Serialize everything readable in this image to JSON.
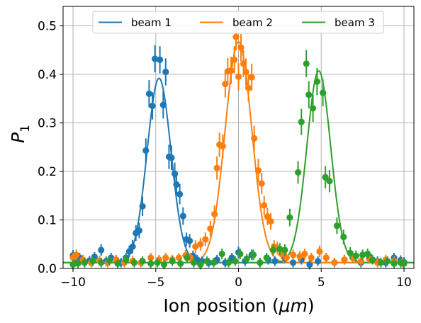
{
  "chart_data": {
    "type": "scatter",
    "title": "",
    "xlabel": "Ion position (μm)",
    "xlabel_prefix": "Ion position (",
    "xlabel_unit": "μm",
    "xlabel_suffix": ")",
    "ylabel": "P₁",
    "ylabel_main": "P",
    "ylabel_sub": "1",
    "xlim": [
      -10.6,
      10.6
    ],
    "ylim": [
      0,
      0.54
    ],
    "xticks": [
      -10,
      -5,
      0,
      5,
      10
    ],
    "xtick_labels": [
      "−10",
      "−5",
      "0",
      "5",
      "10"
    ],
    "yticks": [
      0.0,
      0.1,
      0.2,
      0.3,
      0.4,
      0.5
    ],
    "ytick_labels": [
      "0.0",
      "0.1",
      "0.2",
      "0.3",
      "0.4",
      "0.5"
    ],
    "grid": true,
    "legend_position": "top",
    "series": [
      {
        "name": "beam 1",
        "color": "#1f77b4",
        "fit": {
          "amplitude": 0.38,
          "center": -4.8,
          "sigma": 0.72,
          "offset": 0.012
        },
        "points": [
          {
            "x": -10.0,
            "y": 0.027,
            "err": 0.011
          },
          {
            "x": -9.8,
            "y": 0.018,
            "err": 0.01
          },
          {
            "x": -9.6,
            "y": 0.022,
            "err": 0.01
          },
          {
            "x": -9.3,
            "y": 0.012,
            "err": 0.01
          },
          {
            "x": -9.0,
            "y": 0.016,
            "err": 0.01
          },
          {
            "x": -8.7,
            "y": 0.024,
            "err": 0.01
          },
          {
            "x": -8.3,
            "y": 0.038,
            "err": 0.012
          },
          {
            "x": -8.0,
            "y": 0.015,
            "err": 0.01
          },
          {
            "x": -7.7,
            "y": 0.022,
            "err": 0.01
          },
          {
            "x": -7.4,
            "y": 0.018,
            "err": 0.01
          },
          {
            "x": -7.1,
            "y": 0.012,
            "err": 0.01
          },
          {
            "x": -6.8,
            "y": 0.022,
            "err": 0.01
          },
          {
            "x": -6.6,
            "y": 0.035,
            "err": 0.012
          },
          {
            "x": -6.4,
            "y": 0.045,
            "err": 0.014
          },
          {
            "x": -6.2,
            "y": 0.073,
            "err": 0.016
          },
          {
            "x": -6.0,
            "y": 0.078,
            "err": 0.016
          },
          {
            "x": -5.8,
            "y": 0.128,
            "err": 0.02
          },
          {
            "x": -5.6,
            "y": 0.243,
            "err": 0.025
          },
          {
            "x": -5.4,
            "y": 0.36,
            "err": 0.028
          },
          {
            "x": -5.2,
            "y": 0.335,
            "err": 0.028
          },
          {
            "x": -5.05,
            "y": 0.432,
            "err": 0.028
          },
          {
            "x": -4.75,
            "y": 0.43,
            "err": 0.028
          },
          {
            "x": -4.55,
            "y": 0.337,
            "err": 0.028
          },
          {
            "x": -4.4,
            "y": 0.405,
            "err": 0.028
          },
          {
            "x": -4.2,
            "y": 0.23,
            "err": 0.025
          },
          {
            "x": -4.05,
            "y": 0.228,
            "err": 0.025
          },
          {
            "x": -3.85,
            "y": 0.195,
            "err": 0.023
          },
          {
            "x": -3.75,
            "y": 0.173,
            "err": 0.022
          },
          {
            "x": -3.55,
            "y": 0.153,
            "err": 0.021
          },
          {
            "x": -3.35,
            "y": 0.108,
            "err": 0.018
          },
          {
            "x": -3.15,
            "y": 0.06,
            "err": 0.014
          },
          {
            "x": -2.95,
            "y": 0.057,
            "err": 0.014
          },
          {
            "x": -2.75,
            "y": 0.026,
            "err": 0.011
          },
          {
            "x": -2.5,
            "y": 0.018,
            "err": 0.01
          },
          {
            "x": -2.2,
            "y": 0.015,
            "err": 0.01
          },
          {
            "x": -1.8,
            "y": 0.012,
            "err": 0.01
          },
          {
            "x": -1.3,
            "y": 0.018,
            "err": 0.01
          },
          {
            "x": -0.8,
            "y": 0.012,
            "err": 0.01
          },
          {
            "x": -0.4,
            "y": 0.022,
            "err": 0.01
          },
          {
            "x": 0.0,
            "y": 0.033,
            "err": 0.012
          },
          {
            "x": 0.4,
            "y": 0.015,
            "err": 0.01
          },
          {
            "x": 0.8,
            "y": 0.028,
            "err": 0.011
          },
          {
            "x": 1.3,
            "y": 0.012,
            "err": 0.01
          },
          {
            "x": 1.8,
            "y": 0.018,
            "err": 0.01
          },
          {
            "x": 2.2,
            "y": 0.015,
            "err": 0.01
          },
          {
            "x": 2.8,
            "y": 0.022,
            "err": 0.01
          },
          {
            "x": 3.3,
            "y": 0.012,
            "err": 0.01
          },
          {
            "x": 3.8,
            "y": 0.018,
            "err": 0.01
          },
          {
            "x": 4.3,
            "y": 0.008,
            "err": 0.01
          },
          {
            "x": 4.8,
            "y": 0.015,
            "err": 0.01
          },
          {
            "x": 5.3,
            "y": 0.022,
            "err": 0.01
          },
          {
            "x": 5.8,
            "y": 0.012,
            "err": 0.01
          },
          {
            "x": 6.4,
            "y": 0.018,
            "err": 0.01
          },
          {
            "x": 6.9,
            "y": 0.022,
            "err": 0.01
          },
          {
            "x": 7.4,
            "y": 0.012,
            "err": 0.01
          },
          {
            "x": 7.9,
            "y": 0.025,
            "err": 0.011
          },
          {
            "x": 8.4,
            "y": 0.015,
            "err": 0.01
          },
          {
            "x": 8.9,
            "y": 0.012,
            "err": 0.01
          },
          {
            "x": 9.4,
            "y": 0.022,
            "err": 0.01
          },
          {
            "x": 9.8,
            "y": 0.017,
            "err": 0.01
          },
          {
            "x": 10.0,
            "y": 0.013,
            "err": 0.01
          }
        ]
      },
      {
        "name": "beam 2",
        "color": "#ff7f0e",
        "fit": {
          "amplitude": 0.455,
          "center": 0.0,
          "sigma": 0.8,
          "offset": 0.012
        },
        "points": [
          {
            "x": -10.0,
            "y": 0.022,
            "err": 0.01
          },
          {
            "x": -9.8,
            "y": 0.028,
            "err": 0.011
          },
          {
            "x": -9.4,
            "y": 0.018,
            "err": 0.01
          },
          {
            "x": -8.9,
            "y": 0.012,
            "err": 0.01
          },
          {
            "x": -8.4,
            "y": 0.016,
            "err": 0.01
          },
          {
            "x": -7.9,
            "y": 0.012,
            "err": 0.01
          },
          {
            "x": -7.4,
            "y": 0.018,
            "err": 0.01
          },
          {
            "x": -6.9,
            "y": 0.012,
            "err": 0.01
          },
          {
            "x": -6.4,
            "y": 0.015,
            "err": 0.01
          },
          {
            "x": -5.9,
            "y": 0.012,
            "err": 0.01
          },
          {
            "x": -5.3,
            "y": 0.022,
            "err": 0.01
          },
          {
            "x": -4.8,
            "y": 0.018,
            "err": 0.01
          },
          {
            "x": -4.4,
            "y": 0.022,
            "err": 0.01
          },
          {
            "x": -4.0,
            "y": 0.018,
            "err": 0.01
          },
          {
            "x": -3.6,
            "y": 0.022,
            "err": 0.01
          },
          {
            "x": -3.2,
            "y": 0.027,
            "err": 0.011
          },
          {
            "x": -2.9,
            "y": 0.022,
            "err": 0.01
          },
          {
            "x": -2.6,
            "y": 0.045,
            "err": 0.013
          },
          {
            "x": -2.3,
            "y": 0.05,
            "err": 0.013
          },
          {
            "x": -2.0,
            "y": 0.06,
            "err": 0.014
          },
          {
            "x": -1.7,
            "y": 0.082,
            "err": 0.016
          },
          {
            "x": -1.45,
            "y": 0.112,
            "err": 0.018
          },
          {
            "x": -1.3,
            "y": 0.207,
            "err": 0.024
          },
          {
            "x": -1.15,
            "y": 0.255,
            "err": 0.025
          },
          {
            "x": -0.95,
            "y": 0.252,
            "err": 0.025
          },
          {
            "x": -0.8,
            "y": 0.38,
            "err": 0.028
          },
          {
            "x": -0.65,
            "y": 0.406,
            "err": 0.028
          },
          {
            "x": -0.45,
            "y": 0.408,
            "err": 0.028
          },
          {
            "x": -0.25,
            "y": 0.43,
            "err": 0.028
          },
          {
            "x": -0.15,
            "y": 0.477,
            "err": 0.028
          },
          {
            "x": 0.0,
            "y": 0.395,
            "err": 0.028
          },
          {
            "x": 0.15,
            "y": 0.455,
            "err": 0.028
          },
          {
            "x": 0.3,
            "y": 0.422,
            "err": 0.028
          },
          {
            "x": 0.45,
            "y": 0.405,
            "err": 0.028
          },
          {
            "x": 0.6,
            "y": 0.372,
            "err": 0.028
          },
          {
            "x": 0.8,
            "y": 0.394,
            "err": 0.028
          },
          {
            "x": 0.95,
            "y": 0.268,
            "err": 0.026
          },
          {
            "x": 1.2,
            "y": 0.202,
            "err": 0.024
          },
          {
            "x": 1.4,
            "y": 0.175,
            "err": 0.022
          },
          {
            "x": 1.55,
            "y": 0.13,
            "err": 0.02
          },
          {
            "x": 1.75,
            "y": 0.107,
            "err": 0.018
          },
          {
            "x": 1.95,
            "y": 0.097,
            "err": 0.017
          },
          {
            "x": 2.15,
            "y": 0.045,
            "err": 0.013
          },
          {
            "x": 2.35,
            "y": 0.042,
            "err": 0.013
          },
          {
            "x": 2.6,
            "y": 0.03,
            "err": 0.011
          },
          {
            "x": 2.9,
            "y": 0.022,
            "err": 0.01
          },
          {
            "x": 3.3,
            "y": 0.028,
            "err": 0.011
          },
          {
            "x": 3.7,
            "y": 0.025,
            "err": 0.011
          },
          {
            "x": 4.0,
            "y": 0.03,
            "err": 0.011
          },
          {
            "x": 4.4,
            "y": 0.022,
            "err": 0.01
          },
          {
            "x": 4.9,
            "y": 0.035,
            "err": 0.012
          },
          {
            "x": 5.3,
            "y": 0.022,
            "err": 0.01
          },
          {
            "x": 5.8,
            "y": 0.012,
            "err": 0.01
          },
          {
            "x": 6.4,
            "y": 0.018,
            "err": 0.01
          },
          {
            "x": 6.9,
            "y": 0.022,
            "err": 0.01
          },
          {
            "x": 7.4,
            "y": 0.015,
            "err": 0.01
          },
          {
            "x": 7.9,
            "y": 0.02,
            "err": 0.01
          },
          {
            "x": 8.4,
            "y": 0.012,
            "err": 0.01
          },
          {
            "x": 8.9,
            "y": 0.018,
            "err": 0.01
          },
          {
            "x": 9.4,
            "y": 0.015,
            "err": 0.01
          },
          {
            "x": 9.9,
            "y": 0.012,
            "err": 0.01
          }
        ]
      },
      {
        "name": "beam 3",
        "color": "#2ca02c",
        "fit": {
          "amplitude": 0.395,
          "center": 4.85,
          "sigma": 0.72,
          "offset": 0.012
        },
        "points": [
          {
            "x": -10.0,
            "y": 0.008,
            "err": 0.01
          },
          {
            "x": -9.7,
            "y": 0.01,
            "err": 0.01
          },
          {
            "x": -9.3,
            "y": 0.012,
            "err": 0.01
          },
          {
            "x": -8.8,
            "y": 0.015,
            "err": 0.01
          },
          {
            "x": -8.3,
            "y": 0.012,
            "err": 0.01
          },
          {
            "x": -7.8,
            "y": 0.016,
            "err": 0.01
          },
          {
            "x": -7.3,
            "y": 0.01,
            "err": 0.01
          },
          {
            "x": -6.8,
            "y": 0.018,
            "err": 0.01
          },
          {
            "x": -6.3,
            "y": 0.012,
            "err": 0.01
          },
          {
            "x": -5.8,
            "y": 0.015,
            "err": 0.01
          },
          {
            "x": -5.3,
            "y": 0.01,
            "err": 0.01
          },
          {
            "x": -4.9,
            "y": 0.012,
            "err": 0.01
          },
          {
            "x": -4.5,
            "y": 0.008,
            "err": 0.01
          },
          {
            "x": -4.0,
            "y": 0.015,
            "err": 0.01
          },
          {
            "x": -3.5,
            "y": 0.01,
            "err": 0.01
          },
          {
            "x": -3.1,
            "y": 0.022,
            "err": 0.01
          },
          {
            "x": -2.7,
            "y": 0.012,
            "err": 0.01
          },
          {
            "x": -2.3,
            "y": 0.008,
            "err": 0.01
          },
          {
            "x": -1.9,
            "y": 0.015,
            "err": 0.01
          },
          {
            "x": -1.5,
            "y": 0.012,
            "err": 0.01
          },
          {
            "x": -1.0,
            "y": 0.03,
            "err": 0.011
          },
          {
            "x": -0.6,
            "y": 0.012,
            "err": 0.01
          },
          {
            "x": -0.2,
            "y": 0.015,
            "err": 0.01
          },
          {
            "x": 0.1,
            "y": 0.03,
            "err": 0.011
          },
          {
            "x": 0.5,
            "y": 0.02,
            "err": 0.01
          },
          {
            "x": 0.9,
            "y": 0.028,
            "err": 0.011
          },
          {
            "x": 1.3,
            "y": 0.012,
            "err": 0.01
          },
          {
            "x": 1.7,
            "y": 0.022,
            "err": 0.01
          },
          {
            "x": 2.1,
            "y": 0.038,
            "err": 0.012
          },
          {
            "x": 2.5,
            "y": 0.04,
            "err": 0.012
          },
          {
            "x": 2.8,
            "y": 0.038,
            "err": 0.012
          },
          {
            "x": 3.1,
            "y": 0.105,
            "err": 0.018
          },
          {
            "x": 3.6,
            "y": 0.198,
            "err": 0.023
          },
          {
            "x": 3.8,
            "y": 0.302,
            "err": 0.027
          },
          {
            "x": 4.1,
            "y": 0.422,
            "err": 0.028
          },
          {
            "x": 4.25,
            "y": 0.358,
            "err": 0.028
          },
          {
            "x": 4.5,
            "y": 0.33,
            "err": 0.028
          },
          {
            "x": 4.75,
            "y": 0.385,
            "err": 0.028
          },
          {
            "x": 5.1,
            "y": 0.362,
            "err": 0.028
          },
          {
            "x": 5.25,
            "y": 0.188,
            "err": 0.023
          },
          {
            "x": 5.5,
            "y": 0.18,
            "err": 0.023
          },
          {
            "x": 5.95,
            "y": 0.088,
            "err": 0.017
          },
          {
            "x": 6.35,
            "y": 0.065,
            "err": 0.015
          },
          {
            "x": 6.75,
            "y": 0.032,
            "err": 0.012
          },
          {
            "x": 7.1,
            "y": 0.026,
            "err": 0.011
          },
          {
            "x": 7.5,
            "y": 0.028,
            "err": 0.011
          },
          {
            "x": 7.8,
            "y": 0.03,
            "err": 0.011
          },
          {
            "x": 8.1,
            "y": 0.018,
            "err": 0.01
          },
          {
            "x": 8.6,
            "y": 0.012,
            "err": 0.01
          },
          {
            "x": 9.0,
            "y": 0.015,
            "err": 0.01
          },
          {
            "x": 9.4,
            "y": 0.01,
            "err": 0.01
          },
          {
            "x": 9.8,
            "y": 0.012,
            "err": 0.01
          },
          {
            "x": 10.0,
            "y": 0.01,
            "err": 0.01
          }
        ]
      }
    ]
  }
}
